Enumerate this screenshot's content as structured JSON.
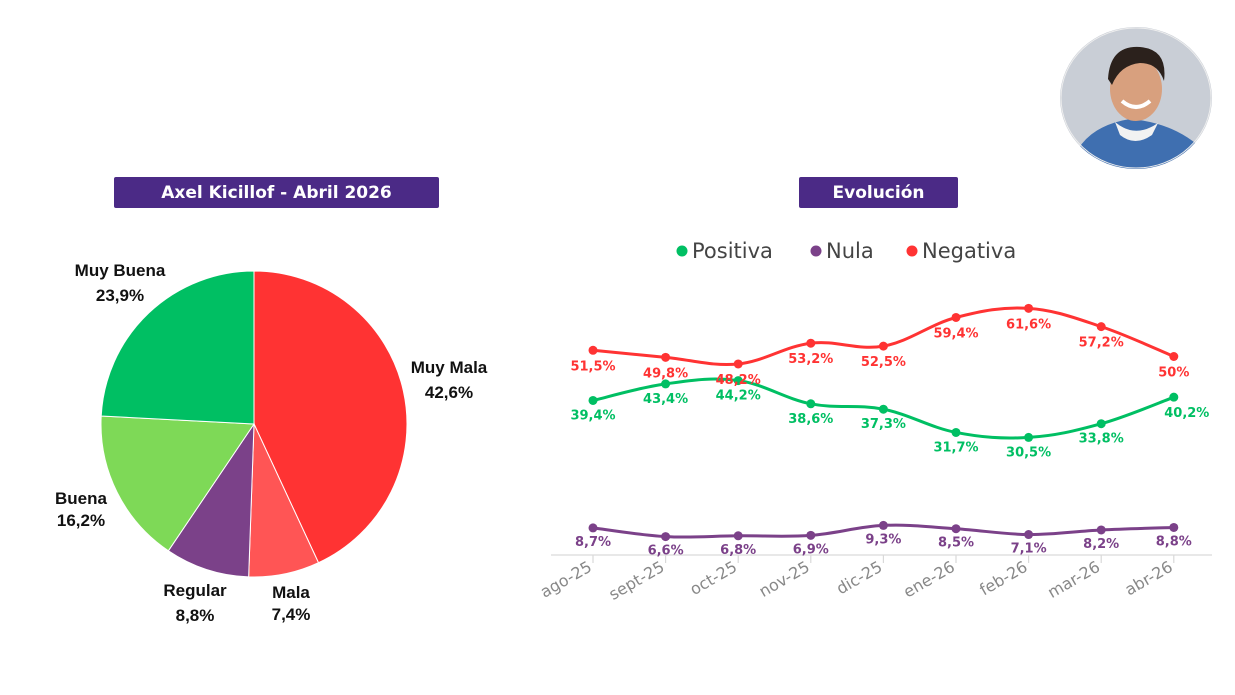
{
  "avatar": {
    "icon": "person-portrait-icon",
    "skin": "#d8a07e",
    "hair": "#2b211c",
    "sweater": "#3f6fb0",
    "collar": "#f2f2f2",
    "backdrop": "#c9ced6"
  },
  "chart_data": [
    {
      "type": "pie",
      "title": "Axel Kicillof - Abril 2026",
      "slices": [
        {
          "label": "Muy Mala",
          "value": 42.6,
          "display": "42,6%",
          "color": "#ff3333"
        },
        {
          "label": "Mala",
          "value": 7.4,
          "display": "7,4%",
          "color": "#ff5555"
        },
        {
          "label": "Regular",
          "value": 8.8,
          "display": "8,8%",
          "color": "#7b4189"
        },
        {
          "label": "Buena",
          "value": 16.2,
          "display": "16,2%",
          "color": "#7ed957"
        },
        {
          "label": "Muy Buena",
          "value": 23.9,
          "display": "23,9%",
          "color": "#00bf63"
        }
      ]
    },
    {
      "type": "line",
      "title": "Evolución",
      "x": [
        "ago-25",
        "sept-25",
        "oct-25",
        "nov-25",
        "dic-25",
        "ene-26",
        "feb-26",
        "mar-26",
        "abr-26"
      ],
      "ylim": [
        0,
        70
      ],
      "series": [
        {
          "name": "Positiva",
          "color": "#00bf63",
          "values": [
            39.4,
            43.4,
            44.2,
            38.6,
            37.3,
            31.7,
            30.5,
            33.8,
            40.2
          ],
          "labels": [
            "39,4%",
            "43,4%",
            "44,2%",
            "38,6%",
            "37,3%",
            "31,7%",
            "30,5%",
            "33,8%",
            "40,2%"
          ]
        },
        {
          "name": "Nula",
          "color": "#7b4189",
          "values": [
            8.7,
            6.6,
            6.8,
            6.9,
            9.3,
            8.5,
            7.1,
            8.2,
            8.8
          ],
          "labels": [
            "8,7%",
            "6,6%",
            "6,8%",
            "6,9%",
            "9,3%",
            "8,5%",
            "7,1%",
            "8,2%",
            "8,8%"
          ]
        },
        {
          "name": "Negativa",
          "color": "#ff3333",
          "values": [
            51.5,
            49.8,
            48.2,
            53.2,
            52.5,
            59.4,
            61.6,
            57.2,
            50
          ],
          "labels": [
            "51,5%",
            "49,8%",
            "48,2%",
            "53,2%",
            "52,5%",
            "59,4%",
            "61,6%",
            "57,2%",
            "50%"
          ]
        }
      ]
    }
  ]
}
